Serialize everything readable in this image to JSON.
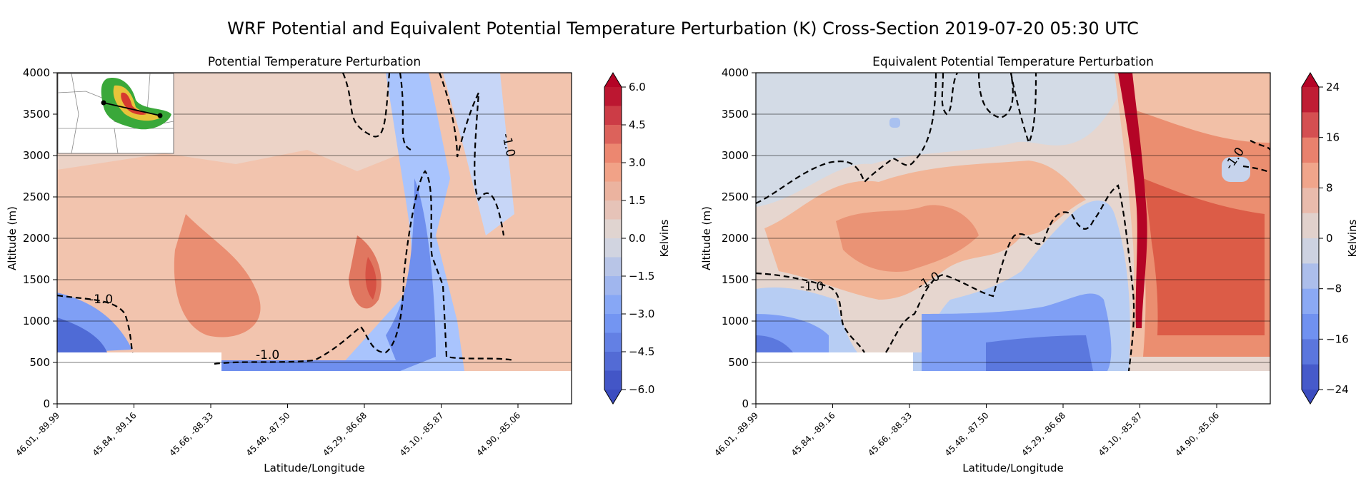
{
  "figure_title": "WRF Potential and Equivalent Potential Temperature Perturbation (K) Cross-Section 2019-07-20 05:30 UTC",
  "colors": {
    "cold_strong": "#3b4cc0",
    "cold": "#7b9ff9",
    "neutral": "#dddcdc",
    "warm": "#f49a7b",
    "warm_strong": "#b40426",
    "contour": "#000000"
  },
  "chart_data": [
    {
      "type": "heatmap",
      "title": "Potential Temperature Perturbation",
      "xlabel": "Latitude/Longitude",
      "ylabel": "Altitude (m)",
      "ylim": [
        0,
        4000
      ],
      "yticks": [
        0,
        500,
        1000,
        1500,
        2000,
        2500,
        3000,
        3500,
        4000
      ],
      "xticks": [
        "46.01, -89.99",
        "45.84, -89.16",
        "45.66, -88.33",
        "45.48, -87.50",
        "45.29, -86.68",
        "45.10, -85.87",
        "44.90, -85.06"
      ],
      "grid": "horizontal",
      "inset_map": true,
      "colorbar": {
        "label": "Kelvins",
        "range": [
          -6.0,
          6.0
        ],
        "extend": "both",
        "ticks": [
          "6.0",
          "4.5",
          "3.0",
          "1.5",
          "0.0",
          "-1.5",
          "-3.0",
          "-4.5",
          "-6.0"
        ],
        "levels": [
          -6.0,
          -5.25,
          -4.5,
          -3.75,
          -3.0,
          -2.25,
          -1.5,
          -0.75,
          0,
          0.75,
          1.5,
          2.25,
          3.0,
          3.75,
          4.5,
          5.25,
          6.0
        ]
      },
      "contour_level": -1.0,
      "contour_labels": [
        "-1.0",
        "-1.0",
        "-1.0"
      ]
    },
    {
      "type": "heatmap",
      "title": "Equivalent Potential Temperature Perturbation",
      "xlabel": "Latitude/Longitude",
      "ylabel": "Altitude (m)",
      "ylim": [
        0,
        4000
      ],
      "yticks": [
        0,
        500,
        1000,
        1500,
        2000,
        2500,
        3000,
        3500,
        4000
      ],
      "xticks": [
        "46.01, -89.99",
        "45.84, -89.16",
        "45.66, -88.33",
        "45.48, -87.50",
        "45.29, -86.68",
        "45.10, -85.87",
        "44.90, -85.06"
      ],
      "grid": "horizontal",
      "colorbar": {
        "label": "Kelvins",
        "range": [
          -24,
          24
        ],
        "extend": "both",
        "ticks": [
          "24",
          "16",
          "8",
          "0",
          "-8",
          "-16",
          "-24"
        ],
        "levels": [
          -24,
          -20,
          -16,
          -12,
          -8,
          -4,
          0,
          4,
          8,
          12,
          16,
          20,
          24
        ]
      },
      "contour_level": -1.0,
      "contour_labels": [
        "-1.0",
        "-1.0",
        "-1.0"
      ]
    }
  ]
}
